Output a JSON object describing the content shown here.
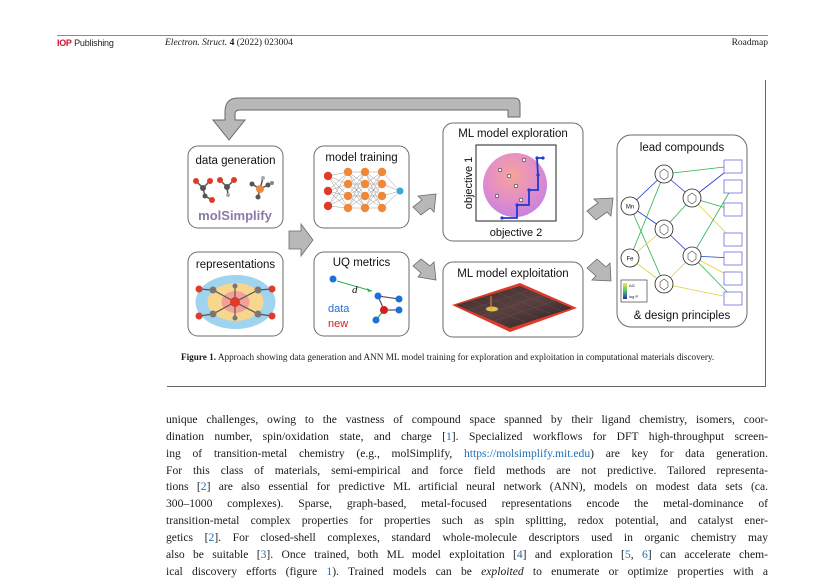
{
  "header": {
    "logo_iop": "IOP",
    "logo_publishing": "Publishing",
    "journal_name": "Electron. Struct.",
    "volume": "4",
    "citation_rest": " (2022) 023004",
    "section": "Roadmap"
  },
  "figure": {
    "panels": {
      "data_generation": "data generation",
      "molsimplify_logo": "molSimplify",
      "representations": "representations",
      "model_training": "model training",
      "uq_metrics": "UQ metrics",
      "uq_d": "d",
      "uq_data": "data",
      "uq_new": "new",
      "ml_exploration": "ML model exploration",
      "objective_1": "objective 1",
      "objective_2": "objective 2",
      "ml_exploitation": "ML model exploitation",
      "lead_compounds": "lead compounds",
      "design_principles": "& design principles",
      "metal_mn": "Mn",
      "metal_fe": "Fe",
      "legend_top": "ΔG",
      "legend_bottom": "log P"
    },
    "colors": {
      "arrow_gray": "#b8b8b8",
      "node_orange": "#f0883a",
      "node_red": "#e03a2a",
      "node_cyan": "#35a8e0",
      "uq_blue": "#1e6fd9",
      "uq_red": "#d32020",
      "uq_green": "#2bb24c"
    }
  },
  "caption": {
    "label": "Figure 1.",
    "text": " Approach showing data generation and ANN ML model training for exploration and exploitation in computational materials discovery."
  },
  "body": {
    "l1": "unique challenges, owing to the vastness of compound space spanned by their ligand chemistry, isomers, coor-",
    "l2a": "dination number, spin/oxidation state, and charge [",
    "ref1": "1",
    "l2b": "]. Specialized workflows for DFT high-throughput screen-",
    "l3a": "ing of transition-metal chemistry (e.g., molSimplify, ",
    "url": "https://molsimplify.mit.edu",
    "l3b": ") are key for data generation.",
    "l4": "For this class of materials, semi-empirical and force field methods are not predictive. Tailored representa-",
    "l5a": "tions [",
    "ref2": "2",
    "l5b": "] are also essential for predictive ML artificial neural network (ANN), models on modest data sets (ca.",
    "l6": "300–1000 complexes). Sparse, graph-based, metal-focused representations encode the metal-dominance of",
    "l7": "transition-metal complex properties for properties such as spin splitting, redox potential, and catalyst ener-",
    "l8a": "getics [",
    "ref2b": "2",
    "l8b": "]. For closed-shell complexes, standard whole-molecule descriptors used in organic chemistry may",
    "l9a": "also be suitable [",
    "ref3": "3",
    "l9b": "]. Once trained, both ML model exploitation [",
    "ref4": "4",
    "l9c": "] and exploration [",
    "ref5": "5",
    "l9d": ", ",
    "ref6": "6",
    "l9e": "] can accelerate chem-",
    "l10a": "ical discovery efforts (figure ",
    "ref_fig": "1",
    "l10b": "). Trained models can be ",
    "exploited": "exploited",
    "l10c": " to enumerate or optimize properties with a"
  }
}
